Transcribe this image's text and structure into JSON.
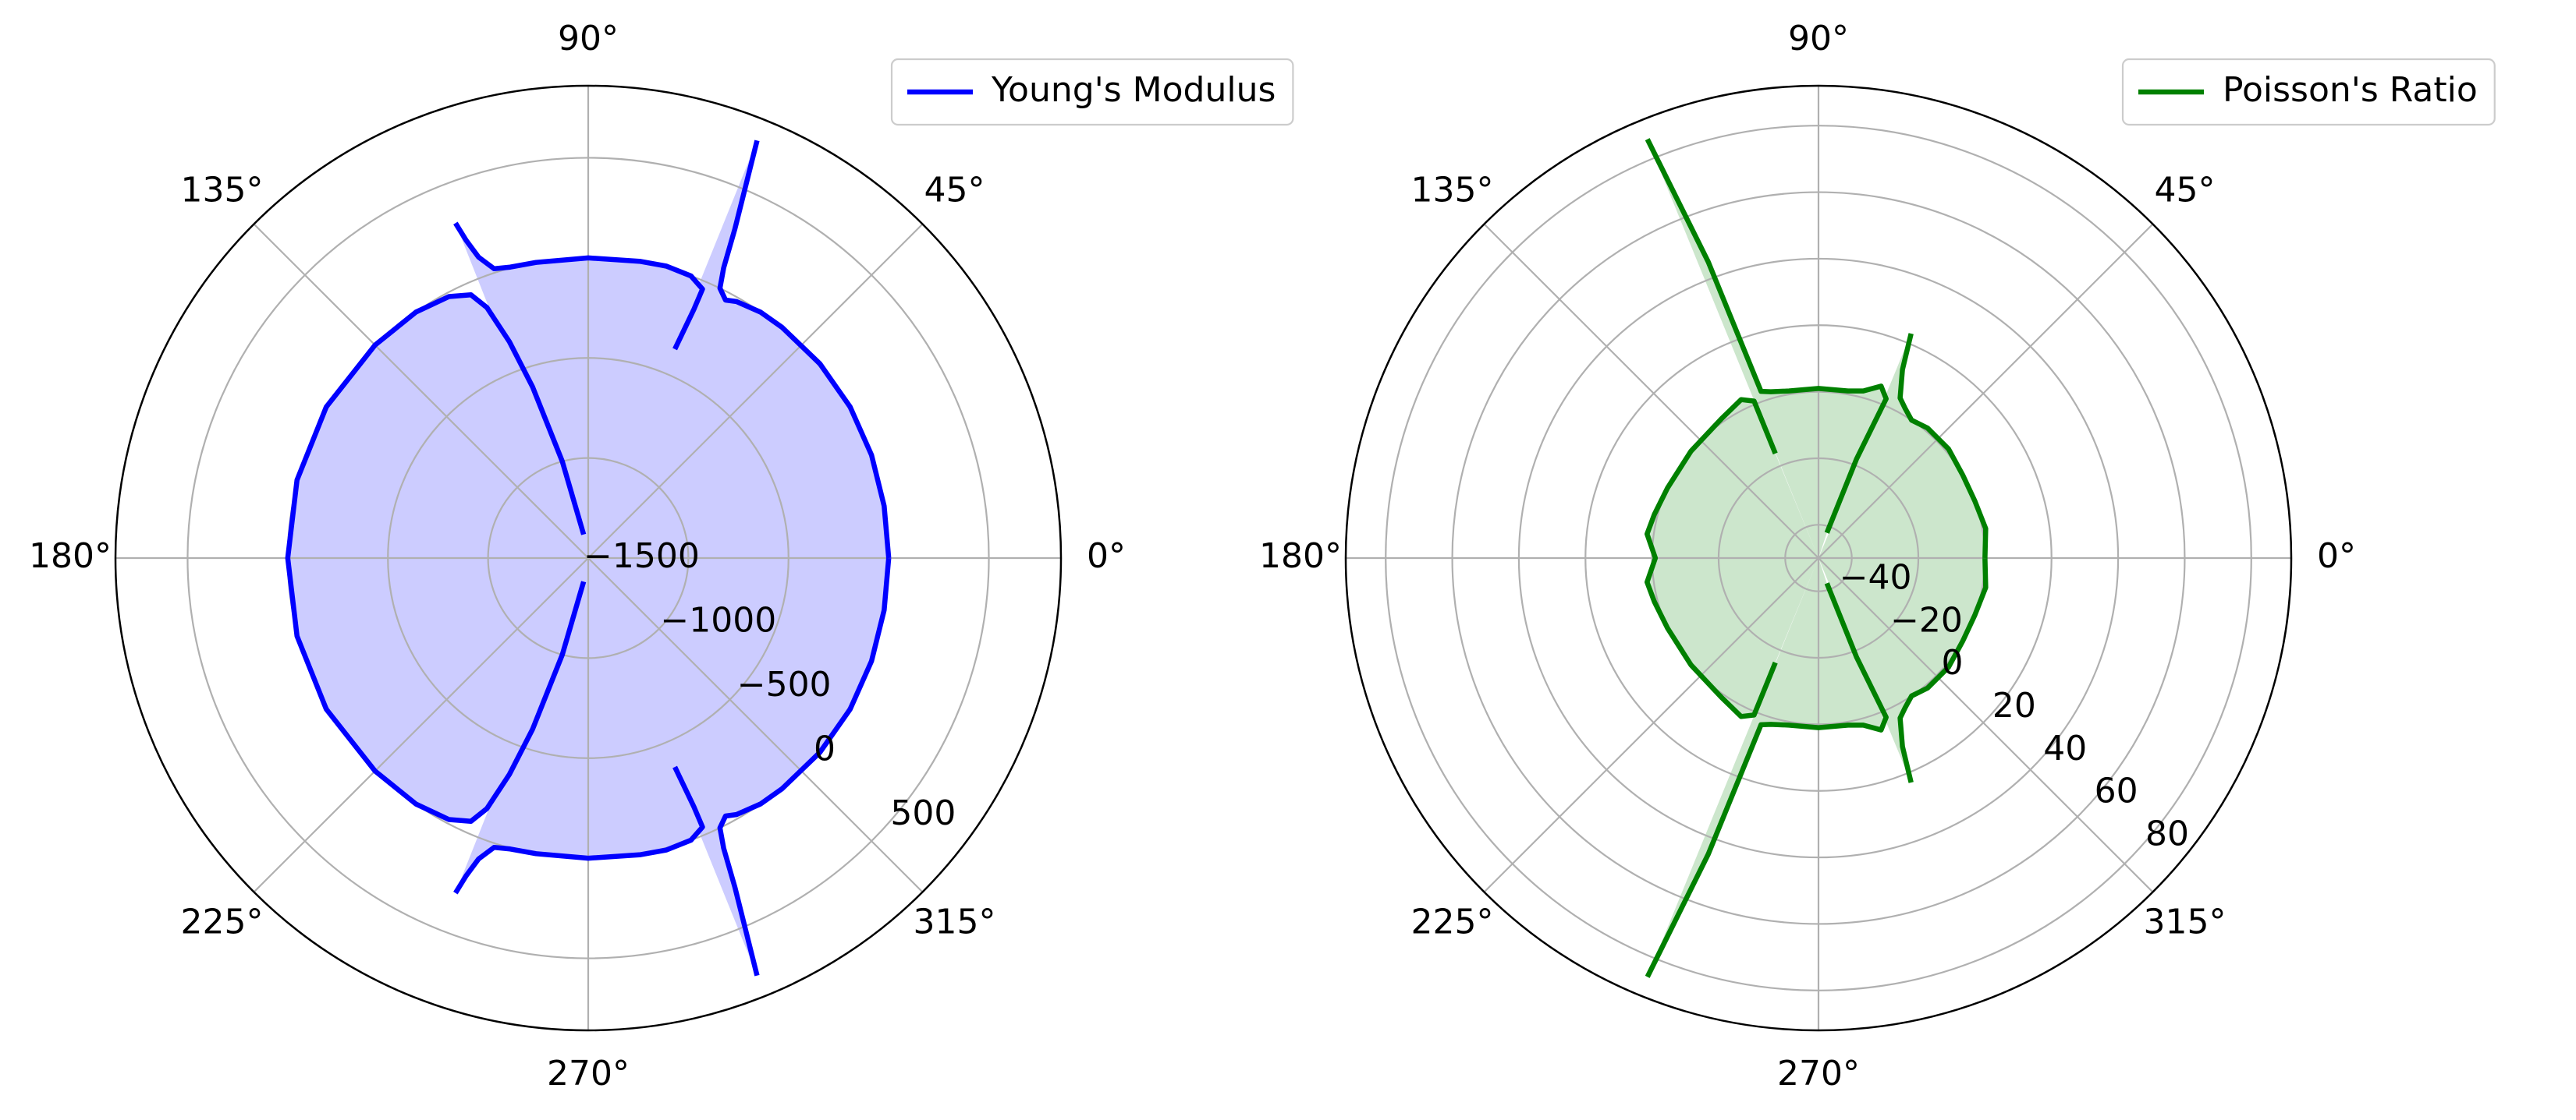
{
  "chart_data": [
    {
      "type": "polar",
      "x": [
        0,
        10,
        20,
        30,
        40,
        50,
        55,
        60,
        62,
        64,
        65,
        66,
        67,
        68,
        null,
        67.5,
        67,
        67,
        70,
        75,
        80,
        90,
        100,
        105,
        108,
        110,
        111,
        111.6,
        null,
        101,
        105,
        108,
        110,
        112,
        114,
        118,
        125,
        135,
        150,
        165,
        180,
        195,
        210,
        225,
        235,
        242,
        246,
        248,
        250,
        252,
        255,
        259,
        null,
        248.4,
        249,
        250,
        252,
        255,
        260,
        270,
        280,
        285,
        290,
        293,
        293,
        292.5,
        null,
        292,
        293,
        294,
        295,
        296,
        298,
        300,
        305,
        310,
        320,
        330,
        340,
        350,
        360
      ],
      "series": [
        {
          "name": "Young's Modulus",
          "color": "#0000ff",
          "values": [
            0,
            0,
            5,
            10,
            10,
            5,
            0,
            -20,
            -40,
            0,
            100,
            300,
            500,
            750,
            null,
            -370,
            -150,
            -40,
            0,
            10,
            5,
            0,
            0,
            5,
            20,
            100,
            200,
            300,
            null,
            -1380,
            -1000,
            -600,
            -350,
            -150,
            -60,
            -20,
            0,
            5,
            10,
            5,
            0,
            5,
            10,
            5,
            0,
            -20,
            -60,
            -150,
            -350,
            -600,
            -1000,
            -1380,
            null,
            300,
            200,
            100,
            20,
            5,
            0,
            0,
            5,
            10,
            0,
            -40,
            -150,
            -370,
            null,
            750,
            500,
            300,
            100,
            0,
            -40,
            -20,
            0,
            5,
            10,
            10,
            5,
            0,
            0
          ]
        }
      ],
      "xlim": [
        0,
        360
      ],
      "xticks": [
        {
          "value": 0,
          "label": "0°"
        },
        {
          "value": 45,
          "label": "45°"
        },
        {
          "value": 90,
          "label": "90°"
        },
        {
          "value": 135,
          "label": "135°"
        },
        {
          "value": 180,
          "label": "180°"
        },
        {
          "value": 225,
          "label": "225°"
        },
        {
          "value": 270,
          "label": "270°"
        },
        {
          "value": 315,
          "label": "315°"
        }
      ],
      "ylim": [
        -1500,
        860
      ],
      "yticks": [
        {
          "value": -1500,
          "label": "−1500"
        },
        {
          "value": -1000,
          "label": "−1000"
        },
        {
          "value": -500,
          "label": "−500"
        },
        0,
        500
      ],
      "grid": true,
      "fill": true,
      "legend": "upper right"
    },
    {
      "type": "polar",
      "x": [
        0,
        10,
        20,
        30,
        40,
        50,
        56,
        60,
        63,
        66,
        67.6,
        null,
        71.6,
        69,
        67,
        70,
        75,
        80,
        90,
        100,
        106,
        109,
        110.4,
        112.2,
        null,
        112.4,
        112.3,
        116,
        125,
        140,
        155,
        165,
        172,
        180,
        188,
        195,
        205,
        220,
        235,
        244,
        247.7,
        247.6,
        null,
        247.8,
        249.6,
        251,
        254,
        260,
        270,
        280,
        285,
        290,
        293,
        291,
        288.4,
        null,
        292.4,
        294,
        297,
        300,
        304,
        310,
        320,
        330,
        340,
        350,
        360
      ],
      "series": [
        {
          "name": "Poisson's Ratio",
          "color": "#008000",
          "values": [
            0,
            1,
            0,
            0,
            1,
            1,
            0,
            2,
            4,
            12,
            23,
            null,
            -42,
            -18,
            2,
            5,
            2,
            1,
            1,
            1,
            2,
            3,
            45,
            86,
            null,
            -16,
            1,
            3,
            1,
            0,
            0,
            1,
            2,
            -1,
            2,
            1,
            0,
            0,
            1,
            3,
            1,
            -16,
            null,
            86,
            45,
            3,
            2,
            1,
            1,
            1,
            2,
            5,
            2,
            -18,
            -42,
            null,
            23,
            12,
            4,
            2,
            0,
            1,
            1,
            0,
            0,
            1,
            0
          ]
        }
      ],
      "xlim": [
        0,
        360
      ],
      "xticks": [
        {
          "value": 0,
          "label": "0°"
        },
        {
          "value": 45,
          "label": "45°"
        },
        {
          "value": 90,
          "label": "90°"
        },
        {
          "value": 135,
          "label": "135°"
        },
        {
          "value": 180,
          "label": "180°"
        },
        {
          "value": 225,
          "label": "225°"
        },
        {
          "value": 270,
          "label": "270°"
        },
        {
          "value": 315,
          "label": "315°"
        }
      ],
      "ylim": [
        -50,
        92
      ],
      "yticks": [
        {
          "value": -40,
          "label": "−40"
        },
        {
          "value": -20,
          "label": "−20"
        },
        0,
        20,
        40,
        60,
        80
      ],
      "grid": true,
      "fill": true,
      "legend": "upper right"
    }
  ]
}
